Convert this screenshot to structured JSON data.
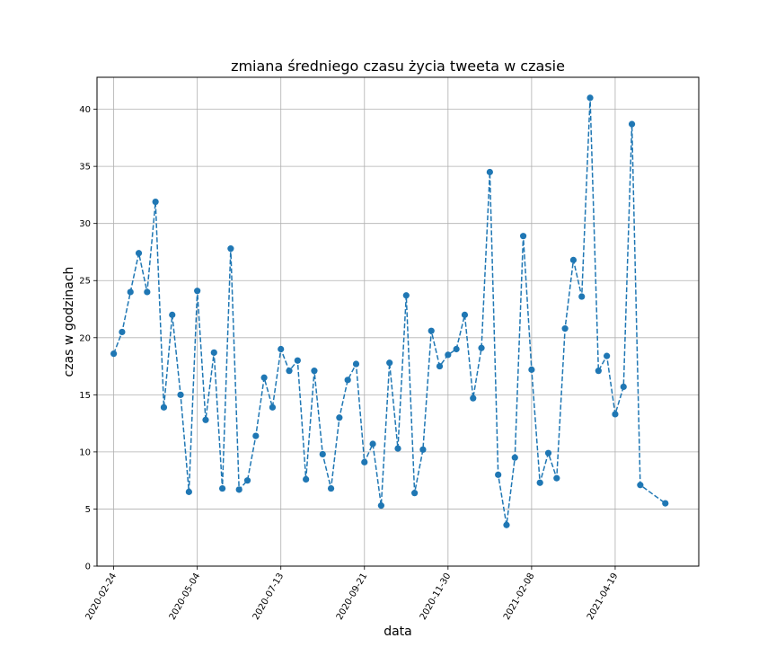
{
  "chart_data": {
    "type": "line",
    "title": "zmiana średniego czasu życia tweeta w czasie",
    "xlabel": "data",
    "ylabel": "czas w godzinach",
    "x_axis_type": "date",
    "x_range": [
      "2020-02-10",
      "2021-06-28"
    ],
    "ylim": [
      0,
      42.8
    ],
    "grid": true,
    "line_style": "dashed",
    "marker": "circle",
    "colors": {
      "series": "#1f77b4",
      "grid": "#b0b0b0",
      "axes": "#000000"
    },
    "x_ticks": [
      "2020-02-24",
      "2020-05-04",
      "2020-07-13",
      "2020-09-21",
      "2020-11-30",
      "2021-02-08",
      "2021-04-19"
    ],
    "y_ticks": [
      0,
      5,
      10,
      15,
      20,
      25,
      30,
      35,
      40
    ],
    "series": [
      {
        "points": [
          [
            "2020-02-24",
            18.6
          ],
          [
            "2020-03-02",
            20.5
          ],
          [
            "2020-03-09",
            24.0
          ],
          [
            "2020-03-16",
            27.4
          ],
          [
            "2020-03-23",
            24.0
          ],
          [
            "2020-03-30",
            31.9
          ],
          [
            "2020-04-06",
            13.9
          ],
          [
            "2020-04-13",
            22.0
          ],
          [
            "2020-04-20",
            15.0
          ],
          [
            "2020-04-27",
            6.5
          ],
          [
            "2020-05-04",
            24.1
          ],
          [
            "2020-05-11",
            12.8
          ],
          [
            "2020-05-18",
            18.7
          ],
          [
            "2020-05-25",
            6.8
          ],
          [
            "2020-06-01",
            27.8
          ],
          [
            "2020-06-08",
            6.7
          ],
          [
            "2020-06-15",
            7.5
          ],
          [
            "2020-06-22",
            11.4
          ],
          [
            "2020-06-29",
            16.5
          ],
          [
            "2020-07-06",
            13.9
          ],
          [
            "2020-07-13",
            19.0
          ],
          [
            "2020-07-20",
            17.1
          ],
          [
            "2020-07-27",
            18.0
          ],
          [
            "2020-08-03",
            7.6
          ],
          [
            "2020-08-10",
            17.1
          ],
          [
            "2020-08-17",
            9.8
          ],
          [
            "2020-08-24",
            6.8
          ],
          [
            "2020-08-31",
            13.0
          ],
          [
            "2020-09-07",
            16.3
          ],
          [
            "2020-09-14",
            17.7
          ],
          [
            "2020-09-21",
            9.1
          ],
          [
            "2020-09-28",
            10.7
          ],
          [
            "2020-10-05",
            5.3
          ],
          [
            "2020-10-12",
            17.8
          ],
          [
            "2020-10-19",
            10.3
          ],
          [
            "2020-10-26",
            23.7
          ],
          [
            "2020-11-02",
            6.4
          ],
          [
            "2020-11-09",
            10.2
          ],
          [
            "2020-11-16",
            20.6
          ],
          [
            "2020-11-23",
            17.5
          ],
          [
            "2020-11-30",
            18.5
          ],
          [
            "2020-12-07",
            19.0
          ],
          [
            "2020-12-14",
            22.0
          ],
          [
            "2020-12-21",
            14.7
          ],
          [
            "2020-12-28",
            19.1
          ],
          [
            "2021-01-04",
            34.5
          ],
          [
            "2021-01-11",
            8.0
          ],
          [
            "2021-01-18",
            3.6
          ],
          [
            "2021-01-25",
            9.5
          ],
          [
            "2021-02-01",
            28.9
          ],
          [
            "2021-02-08",
            17.2
          ],
          [
            "2021-02-15",
            7.3
          ],
          [
            "2021-02-22",
            9.9
          ],
          [
            "2021-03-01",
            7.7
          ],
          [
            "2021-03-08",
            20.8
          ],
          [
            "2021-03-15",
            26.8
          ],
          [
            "2021-03-22",
            23.6
          ],
          [
            "2021-03-29",
            41.0
          ],
          [
            "2021-04-05",
            17.1
          ],
          [
            "2021-04-12",
            18.4
          ],
          [
            "2021-04-19",
            13.3
          ],
          [
            "2021-04-26",
            15.7
          ],
          [
            "2021-05-03",
            38.7
          ],
          [
            "2021-05-10",
            7.1
          ],
          [
            "2021-05-31",
            5.5
          ]
        ]
      }
    ]
  }
}
